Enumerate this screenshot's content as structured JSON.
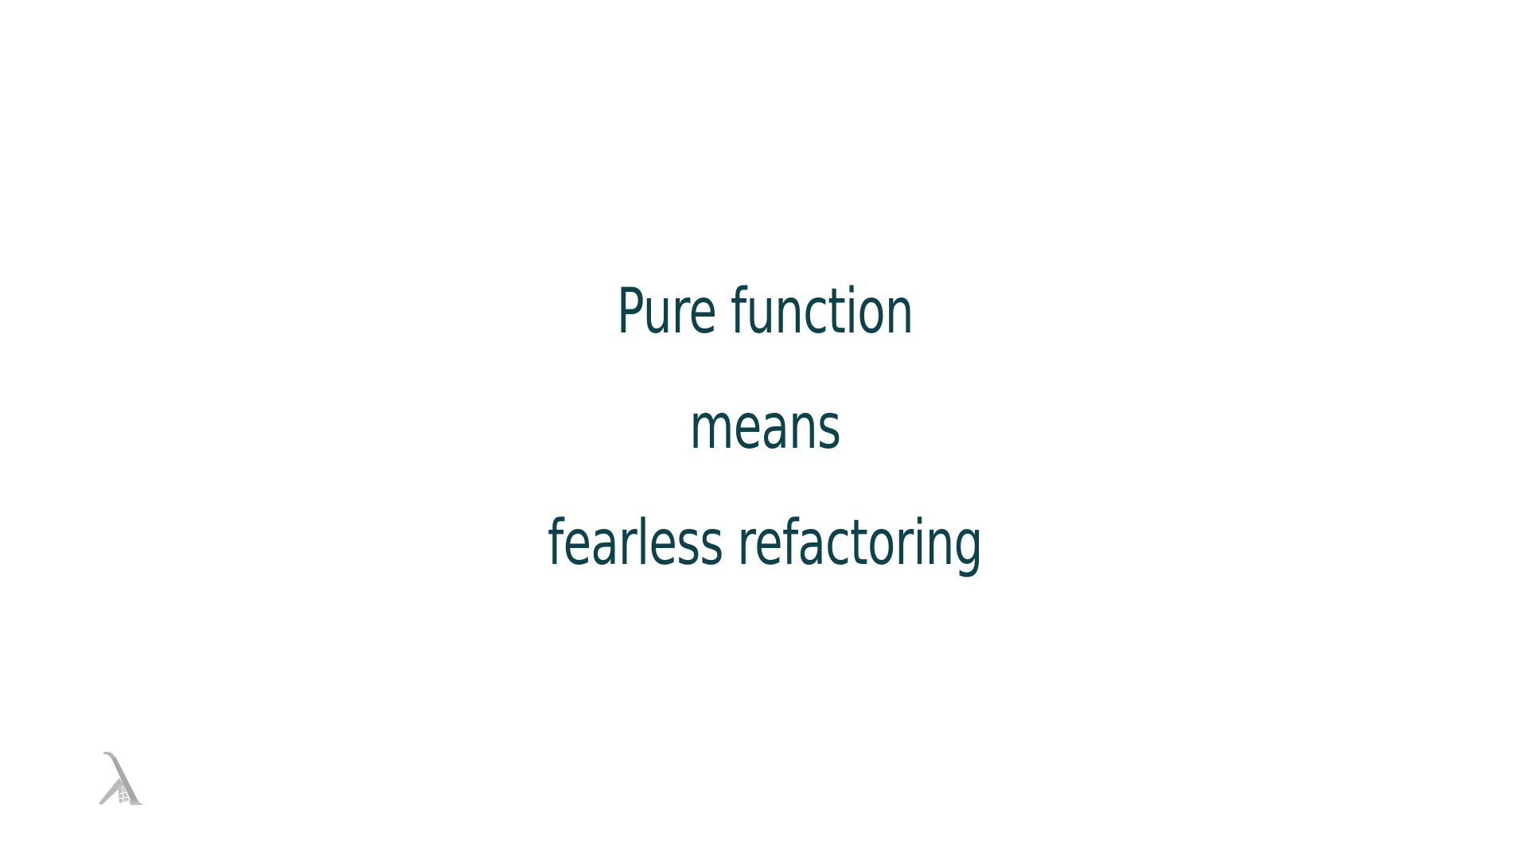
{
  "slide": {
    "lines": [
      "Pure function",
      "means",
      "fearless refactoring"
    ],
    "text_color": "#0e424a",
    "background_color": "#ffffff"
  },
  "logo": {
    "icon": "lambda-logo-icon",
    "color": "#aaaaaa"
  }
}
